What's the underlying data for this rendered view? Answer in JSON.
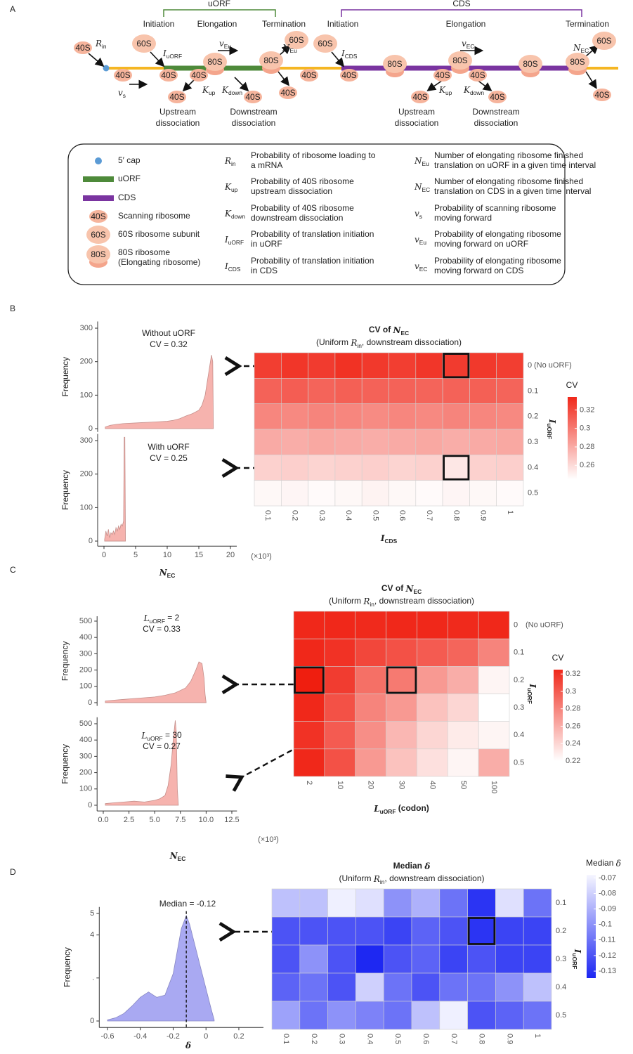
{
  "panels": [
    "A",
    "B",
    "C",
    "D"
  ],
  "diagram": {
    "uorf_label": "uORF",
    "cds_label": "CDS",
    "stages": [
      "Initiation",
      "Elongation",
      "Termination",
      "Initiation",
      "Elongation",
      "Termination"
    ],
    "ribosomes": [
      "40S",
      "60S",
      "40S",
      "40S",
      "80S",
      "40S",
      "40S",
      "40S",
      "80S",
      "60S",
      "40S",
      "40S",
      "60S",
      "40S",
      "80S",
      "80S",
      "40S",
      "40S",
      "40S",
      "40S",
      "80S",
      "80S",
      "60S",
      "40S"
    ],
    "params": [
      {
        "base": "R",
        "sub": "in"
      },
      {
        "base": "I",
        "sub": "uORF"
      },
      {
        "base": "v",
        "sub": "Eu"
      },
      {
        "base": "N",
        "sub": "Eu"
      },
      {
        "base": "v",
        "sub": "s"
      },
      {
        "base": "K",
        "sub": "up"
      },
      {
        "base": "K",
        "sub": "down"
      },
      {
        "base": "I",
        "sub": "CDS"
      },
      {
        "base": "v",
        "sub": "EC"
      },
      {
        "base": "N",
        "sub": "EC"
      },
      {
        "base": "K",
        "sub": "up"
      },
      {
        "base": "K",
        "sub": "down"
      }
    ],
    "dissociation": [
      [
        "Upstream",
        "dissociation"
      ],
      [
        "Downstream",
        "dissociation"
      ],
      [
        "Upstream",
        "dissociation"
      ],
      [
        "Downstream",
        "dissociation"
      ]
    ]
  },
  "legend": {
    "items": [
      {
        "lines": [
          "5′ cap"
        ]
      },
      {
        "lines": [
          "uORF"
        ]
      },
      {
        "lines": [
          "CDS"
        ]
      },
      {
        "icon": "40S",
        "lines": [
          "Scanning ribosome"
        ]
      },
      {
        "icon": "60S",
        "lines": [
          "60S ribosome subunit"
        ]
      },
      {
        "icon": "80S",
        "lines": [
          "80S ribosome",
          "(Elongating ribosome)"
        ]
      }
    ],
    "params": [
      {
        "sym": {
          "base": "R",
          "sub": "in"
        },
        "lines": [
          "Probability of ribosome loading to",
          "a mRNA"
        ]
      },
      {
        "sym": {
          "base": "K",
          "sub": "up"
        },
        "lines": [
          "Probability of 40S ribosome",
          "upstream dissociation"
        ]
      },
      {
        "sym": {
          "base": "K",
          "sub": "down"
        },
        "lines": [
          "Probability of 40S ribosome",
          "downstream dissociation"
        ]
      },
      {
        "sym": {
          "base": "I",
          "sub": "uORF"
        },
        "lines": [
          "Probability of translation initiation",
          "in uORF"
        ]
      },
      {
        "sym": {
          "base": "I",
          "sub": "CDS"
        },
        "lines": [
          "Probability of translation initiation",
          "in CDS"
        ]
      },
      {
        "sym": {
          "base": "N",
          "sub": "Eu"
        },
        "lines": [
          "Number of elongating ribosome finished",
          "translation on uORF in a given time interval"
        ]
      },
      {
        "sym": {
          "base": "N",
          "sub": "EC"
        },
        "lines": [
          "Number of elongating ribosome finished",
          "translation on CDS in a given time interval"
        ]
      },
      {
        "sym": {
          "base": "v",
          "sub": "s"
        },
        "lines": [
          "Probability of scanning ribosome",
          "moving forward"
        ]
      },
      {
        "sym": {
          "base": "v",
          "sub": "Eu"
        },
        "lines": [
          "Probability of elongating  ribosome",
          "moving forward on uORF"
        ]
      },
      {
        "sym": {
          "base": "v",
          "sub": "EC"
        },
        "lines": [
          "Probability of elongating  ribosome",
          "moving forward on CDS"
        ]
      }
    ]
  },
  "chart_data": [
    {
      "type": "area",
      "title": "Without uORF",
      "annotation": "CV = 0.32",
      "ylabel": "Frequency",
      "color": "#f6b3ae",
      "x": [
        0.2,
        1,
        2,
        3,
        4,
        5,
        6,
        7,
        8,
        9,
        10,
        11,
        12,
        13,
        14,
        15,
        15.5,
        16,
        16.5,
        17,
        17.2,
        17.3
      ],
      "values": [
        5,
        10,
        13,
        15,
        16,
        17,
        18,
        19,
        20,
        21,
        22,
        25,
        30,
        38,
        45,
        55,
        70,
        100,
        160,
        220,
        200,
        0
      ],
      "xlim": [
        -1,
        21
      ],
      "ylim": [
        -10,
        320
      ],
      "yticks": [
        0,
        100,
        200,
        300
      ]
    },
    {
      "type": "area",
      "title": "With uORF",
      "annotation": "CV = 0.25",
      "ylabel": "Frequency",
      "color": "#f6b3ae",
      "x": [
        0.1,
        0.3,
        0.5,
        0.7,
        0.9,
        1.1,
        1.3,
        1.5,
        1.7,
        1.9,
        2.1,
        2.3,
        2.5,
        2.7,
        2.9,
        3.1,
        3.2,
        3.3,
        3.4
      ],
      "values": [
        5,
        30,
        15,
        35,
        10,
        25,
        20,
        30,
        20,
        40,
        30,
        45,
        35,
        50,
        45,
        60,
        310,
        310,
        0
      ],
      "xlim": [
        -1,
        21
      ],
      "ylim": [
        -15,
        320
      ],
      "yticks": [
        0,
        100,
        200,
        300
      ],
      "xticks": [
        0,
        5,
        10,
        15,
        20
      ],
      "xlabel": [
        {
          "base": "N",
          "sub": "EC"
        }
      ],
      "x_note": "(×10³)"
    },
    {
      "type": "heatmap",
      "title": [
        "CV of ",
        {
          "base": "N",
          "sub": "EC"
        }
      ],
      "subtitle": [
        "(Uniform ",
        {
          "base": "R",
          "sub": "in"
        },
        ", downstream dissociation)"
      ],
      "x": [
        0.1,
        0.2,
        0.3,
        0.4,
        0.5,
        0.6,
        0.7,
        0.8,
        0.9,
        1
      ],
      "y": [
        0,
        0.1,
        0.2,
        0.3,
        0.4,
        0.5
      ],
      "y_note": "(No uORF)",
      "xlabel": [
        {
          "base": "I",
          "sub": "CDS"
        }
      ],
      "ylabel": [
        {
          "base": "I",
          "sub": "uORF"
        }
      ],
      "values": [
        [
          0.325,
          0.328,
          0.326,
          0.33,
          0.327,
          0.325,
          0.328,
          0.326,
          0.327,
          0.325
        ],
        [
          0.31,
          0.312,
          0.309,
          0.311,
          0.31,
          0.31,
          0.309,
          0.31,
          0.311,
          0.309
        ],
        [
          0.295,
          0.294,
          0.296,
          0.295,
          0.293,
          0.295,
          0.294,
          0.296,
          0.295,
          0.294
        ],
        [
          0.28,
          0.279,
          0.281,
          0.28,
          0.279,
          0.28,
          0.281,
          0.279,
          0.28,
          0.281
        ],
        [
          0.264,
          0.265,
          0.263,
          0.264,
          0.265,
          0.263,
          0.264,
          0.255,
          0.264,
          0.265
        ],
        [
          0.248,
          0.249,
          0.247,
          0.248,
          0.25,
          0.248,
          0.247,
          0.249,
          0.248,
          0.247
        ]
      ],
      "colorbar_title": "CV",
      "zlim": [
        0.245,
        0.334
      ],
      "zticks": [
        0.26,
        0.28,
        0.3,
        0.32
      ],
      "colors": [
        "#ffffff",
        "#f0281a"
      ]
    },
    {
      "type": "area",
      "title": [
        {
          "base": "L",
          "sub": "uORF"
        },
        " = 2"
      ],
      "annotation": "CV = 0.33",
      "ylabel": "Frequency",
      "color": "#f6b3ae",
      "x": [
        0.2,
        1,
        2,
        3,
        4,
        5,
        6,
        7,
        8,
        8.5,
        9,
        9.3,
        9.6,
        9.8,
        9.9,
        10
      ],
      "values": [
        10,
        15,
        20,
        25,
        30,
        35,
        45,
        60,
        90,
        130,
        200,
        250,
        240,
        150,
        50,
        0
      ],
      "xlim": [
        -0.6,
        13
      ],
      "ylim": [
        -20,
        530
      ],
      "yticks": [
        0,
        100,
        200,
        300,
        400,
        500
      ]
    },
    {
      "type": "area",
      "title": [
        {
          "base": "L",
          "sub": "uORF"
        },
        " = 30"
      ],
      "annotation": "CV = 0.27",
      "ylabel": "Frequency",
      "color": "#f6b3ae",
      "x": [
        0.2,
        1,
        2,
        3,
        4,
        5,
        5.5,
        6,
        6.3,
        6.6,
        6.8,
        7,
        7.1,
        7.2,
        7.3
      ],
      "values": [
        10,
        15,
        20,
        25,
        20,
        30,
        40,
        60,
        120,
        250,
        400,
        520,
        450,
        100,
        0
      ],
      "xlim": [
        -0.6,
        13
      ],
      "ylim": [
        -35,
        540
      ],
      "yticks": [
        0,
        100,
        200,
        300,
        400,
        500
      ],
      "xticks": [
        {
          "value": 0,
          "label": "0.0"
        },
        {
          "value": 2.5,
          "label": "2.5"
        },
        {
          "value": 5,
          "label": "5.0"
        },
        {
          "value": 7.5,
          "label": "7.5"
        },
        {
          "value": 10,
          "label": "10.0"
        },
        {
          "value": 12.5,
          "label": "12.5"
        }
      ],
      "xlabel": [
        {
          "base": "N",
          "sub": "EC"
        }
      ],
      "x_note": "(×10³)"
    },
    {
      "type": "heatmap",
      "title": [
        "CV of ",
        {
          "base": "N",
          "sub": "EC"
        }
      ],
      "subtitle": [
        "(Uniform ",
        {
          "base": "R",
          "sub": "in"
        },
        ", downstream dissociation)"
      ],
      "x": [
        2,
        10,
        20,
        30,
        40,
        50,
        100
      ],
      "y": [
        0,
        0.1,
        0.2,
        0.3,
        0.4,
        0.5
      ],
      "y_note": "(No uORF)",
      "xlabel": [
        {
          "base": "L",
          "sub": "uORF"
        },
        " (codon)"
      ],
      "ylabel": [
        {
          "base": "I",
          "sub": "uORF"
        }
      ],
      "values": [
        [
          0.325,
          0.325,
          0.324,
          0.325,
          0.325,
          0.324,
          0.325
        ],
        [
          0.325,
          0.32,
          0.31,
          0.305,
          0.3,
          0.295,
          0.28
        ],
        [
          0.33,
          0.315,
          0.29,
          0.285,
          0.27,
          0.26,
          0.225
        ],
        [
          0.325,
          0.305,
          0.28,
          0.27,
          0.25,
          0.24,
          0.22
        ],
        [
          0.32,
          0.3,
          0.275,
          0.255,
          0.24,
          0.23,
          0.225
        ],
        [
          0.325,
          0.305,
          0.27,
          0.25,
          0.235,
          0.225,
          0.26
        ]
      ],
      "colorbar_title": "CV",
      "zlim": [
        0.22,
        0.325
      ],
      "zticks": [
        0.22,
        0.24,
        0.26,
        0.28,
        0.3,
        0.32
      ],
      "colors": [
        "#ffffff",
        "#f0281a"
      ]
    },
    {
      "type": "area",
      "annotation": "Median = -0.12",
      "median": -0.12,
      "ylabel": "Frequency",
      "color": "#a9a9f2",
      "x": [
        -0.6,
        -0.55,
        -0.5,
        -0.45,
        -0.4,
        -0.35,
        -0.3,
        -0.25,
        -0.2,
        -0.15,
        -0.12,
        -0.1,
        -0.05,
        0,
        0.03,
        0.05
      ],
      "values": [
        0.05,
        0.15,
        0.35,
        0.7,
        1.1,
        1.35,
        1.1,
        1.2,
        2.2,
        4.3,
        4.9,
        4.5,
        3.0,
        1.5,
        0.6,
        0.05
      ],
      "xlim": [
        -0.65,
        0.35
      ],
      "ylim": [
        -0.3,
        5.3
      ],
      "yticks": [
        0,
        {
          "value": 2,
          "label": "."
        },
        4,
        5
      ],
      "xticks": [
        -0.6,
        -0.4,
        -0.2,
        0,
        0.2
      ],
      "xlabel": [
        {
          "base": "δ"
        }
      ]
    },
    {
      "type": "heatmap",
      "title": [
        "Median ",
        {
          "base": "δ"
        }
      ],
      "subtitle": [
        "(Uniform ",
        {
          "base": "R",
          "sub": "in"
        },
        ", downstream dissociation)"
      ],
      "x": [
        0.1,
        0.2,
        0.3,
        0.4,
        0.5,
        0.6,
        0.7,
        0.8,
        0.9,
        1
      ],
      "y": [
        0.1,
        0.2,
        0.3,
        0.4,
        0.5
      ],
      "xlabel": [
        {
          "base": "I",
          "sub": "CDS"
        }
      ],
      "ylabel": [
        {
          "base": "I",
          "sub": "uORF"
        }
      ],
      "values": [
        [
          -0.085,
          -0.085,
          -0.07,
          -0.075,
          -0.1,
          -0.09,
          -0.11,
          -0.13,
          -0.075,
          -0.11
        ],
        [
          -0.12,
          -0.12,
          -0.12,
          -0.12,
          -0.125,
          -0.115,
          -0.12,
          -0.13,
          -0.125,
          -0.125
        ],
        [
          -0.12,
          -0.1,
          -0.12,
          -0.134,
          -0.12,
          -0.115,
          -0.125,
          -0.12,
          -0.125,
          -0.125
        ],
        [
          -0.115,
          -0.11,
          -0.12,
          -0.08,
          -0.11,
          -0.12,
          -0.11,
          -0.11,
          -0.1,
          -0.085
        ],
        [
          -0.095,
          -0.11,
          -0.1,
          -0.105,
          -0.11,
          -0.085,
          -0.07,
          -0.12,
          -0.115,
          -0.11
        ]
      ],
      "colorbar_title": [
        "Median ",
        {
          "base": "δ"
        }
      ],
      "zlim": [
        -0.1345,
        -0.068
      ],
      "zticks": [
        -0.07,
        -0.08,
        -0.09,
        -0.1,
        -0.11,
        -0.12,
        -0.13
      ],
      "colors": [
        "#1c26f2",
        "#f6f6ff"
      ]
    }
  ]
}
